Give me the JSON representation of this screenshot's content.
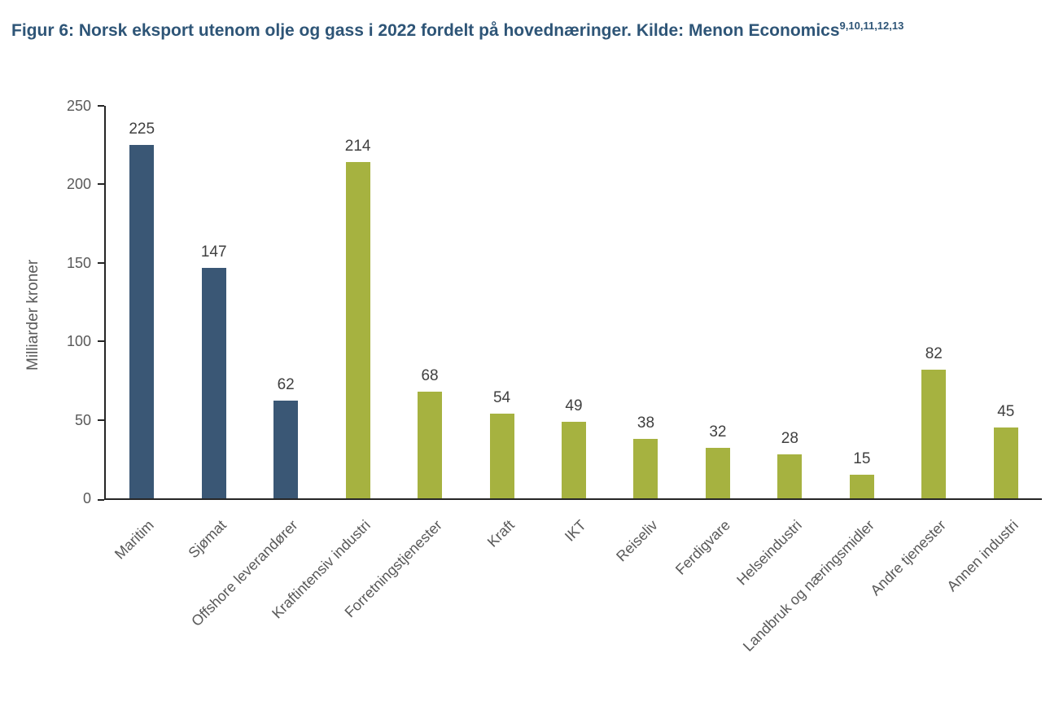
{
  "title": {
    "text": "Figur 6: Norsk eksport utenom olje og gass i 2022 fordelt på hovednæringer. Kilde: Menon Economics",
    "superscript": "9,10,11,12,13",
    "color": "#2E5577"
  },
  "chart_data": {
    "type": "bar",
    "title": "Figur 6: Norsk eksport utenom olje og gass i 2022 fordelt på hovednæringer. Kilde: Menon Economics",
    "categories": [
      "Maritim",
      "Sjømat",
      "Offshore leverandører",
      "Kraftintensiv industri",
      "Forretningstjenester",
      "Kraft",
      "IKT",
      "Reiseliv",
      "Ferdigvare",
      "Helseindustri",
      "Landbruk og næringsmidler",
      "Andre tjenester",
      "Annen industri"
    ],
    "values": [
      225,
      147,
      62,
      214,
      68,
      54,
      49,
      38,
      32,
      28,
      15,
      82,
      45
    ],
    "bar_colors": [
      "#3A5775",
      "#3A5775",
      "#3A5775",
      "#A6B240",
      "#A6B240",
      "#A6B240",
      "#A6B240",
      "#A6B240",
      "#A6B240",
      "#A6B240",
      "#A6B240",
      "#A6B240",
      "#A6B240"
    ],
    "series_color_navy": "#3A5775",
    "series_color_olive": "#A6B240",
    "xlabel": "",
    "ylabel": "Milliarder kroner",
    "ylim": [
      0,
      250
    ],
    "yticks": [
      0,
      50,
      100,
      150,
      200,
      250
    ],
    "grid": false,
    "legend": false,
    "data_labels": true,
    "category_label_rotation_deg": -45
  },
  "style": {
    "axis_line_color": "#262626",
    "tick_label_color": "#595959",
    "value_label_color": "#404040",
    "background": "#FFFFFF"
  }
}
